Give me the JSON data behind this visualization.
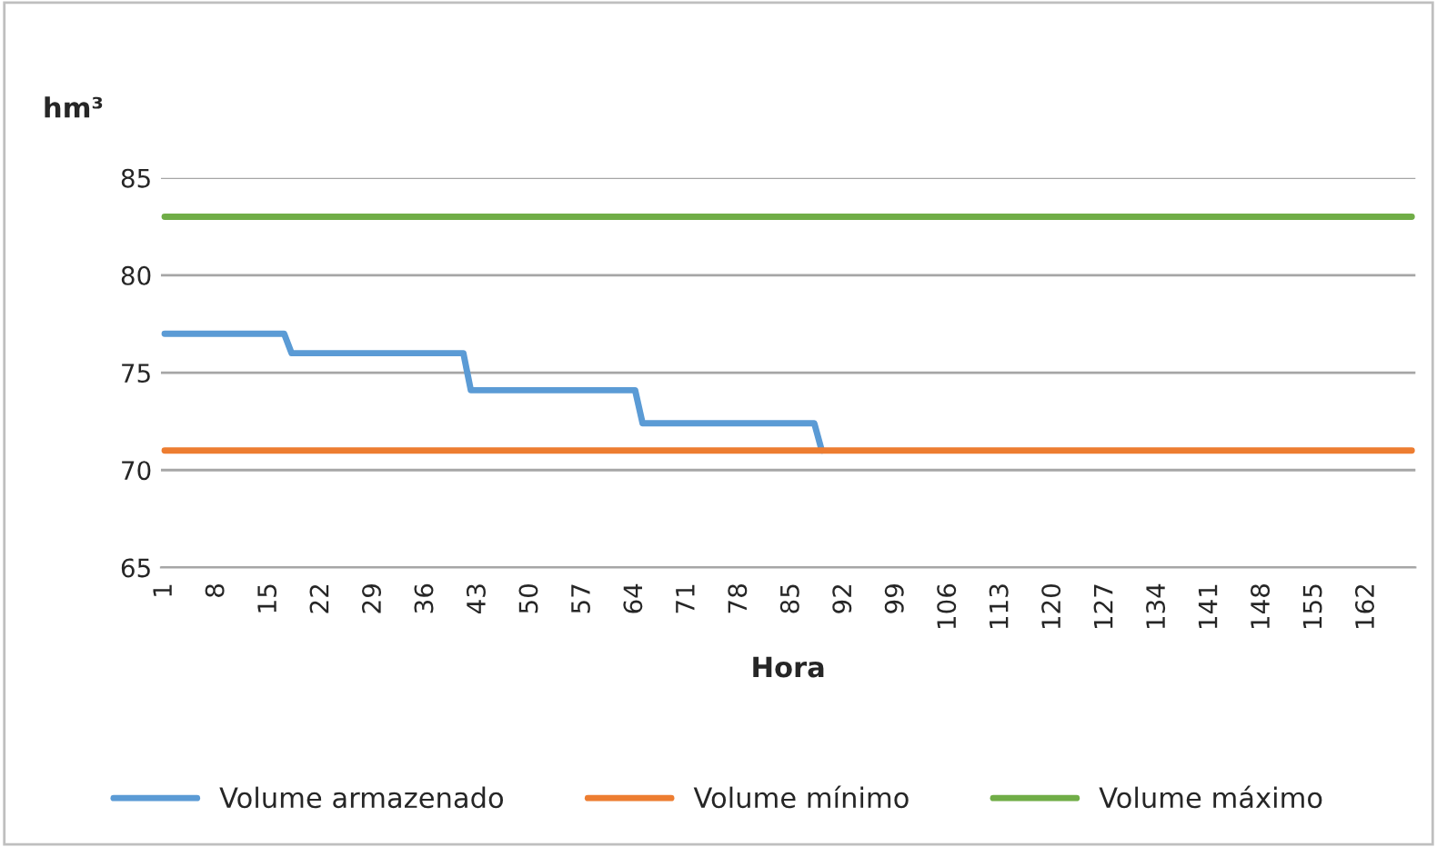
{
  "chart_data": {
    "type": "line",
    "ylabel": "hm³",
    "xlabel": "Hora",
    "categories": [
      "1",
      null,
      null,
      null,
      null,
      null,
      null,
      "8",
      null,
      null,
      null,
      null,
      null,
      null,
      "15",
      null,
      null,
      null,
      null,
      null,
      null,
      "22",
      null,
      null,
      null,
      null,
      null,
      null,
      "29",
      null,
      null,
      null,
      null,
      null,
      null,
      "36",
      null,
      null,
      null,
      null,
      null,
      null,
      "43",
      null,
      null,
      null,
      null,
      null,
      null,
      "50",
      null,
      null,
      null,
      null,
      null,
      null,
      "57",
      null,
      null,
      null,
      null,
      null,
      null,
      "64",
      null,
      null,
      null,
      null,
      null,
      null,
      "71",
      null,
      null,
      null,
      null,
      null,
      null,
      "78",
      null,
      null,
      null,
      null,
      null,
      null,
      "85",
      null,
      null,
      null,
      null,
      null,
      null,
      "92",
      null,
      null,
      null,
      null,
      null,
      null,
      "99",
      null,
      null,
      null,
      null,
      null,
      null,
      "106",
      null,
      null,
      null,
      null,
      null,
      null,
      "113",
      null,
      null,
      null,
      null,
      null,
      null,
      "120",
      null,
      null,
      null,
      null,
      null,
      null,
      "127",
      null,
      null,
      null,
      null,
      null,
      null,
      "134",
      null,
      null,
      null,
      null,
      null,
      null,
      "141",
      null,
      null,
      null,
      null,
      null,
      null,
      "148",
      null,
      null,
      null,
      null,
      null,
      null,
      "155",
      null,
      null,
      null,
      null,
      null,
      null,
      "162",
      null,
      null,
      null,
      null,
      null,
      null
    ],
    "series": [
      {
        "name": "Volume armazenado",
        "color": "#5b9bd5",
        "values": [
          77,
          77,
          77,
          77,
          77,
          77,
          77,
          77,
          77,
          77,
          77,
          77,
          77,
          77,
          77,
          77,
          77,
          76,
          76,
          76,
          76,
          76,
          76,
          76,
          76,
          76,
          76,
          76,
          76,
          76,
          76,
          76,
          76,
          76,
          76,
          76,
          76,
          76,
          76,
          76,
          76,
          74.1,
          74.1,
          74.1,
          74.1,
          74.1,
          74.1,
          74.1,
          74.1,
          74.1,
          74.1,
          74.1,
          74.1,
          74.1,
          74.1,
          74.1,
          74.1,
          74.1,
          74.1,
          74.1,
          74.1,
          74.1,
          74.1,
          74.1,
          72.4,
          72.4,
          72.4,
          72.4,
          72.4,
          72.4,
          72.4,
          72.4,
          72.4,
          72.4,
          72.4,
          72.4,
          72.4,
          72.4,
          72.4,
          72.4,
          72.4,
          72.4,
          72.4,
          72.4,
          72.4,
          72.4,
          72.4,
          72.4,
          71,
          null,
          null,
          null,
          null,
          null,
          null,
          null,
          null,
          null,
          null,
          null,
          null,
          null,
          null,
          null,
          null,
          null,
          null,
          null,
          null,
          null,
          null,
          null,
          null,
          null,
          null,
          null,
          null,
          null,
          null,
          null,
          null,
          null,
          null,
          null,
          null,
          null,
          null,
          null,
          null,
          null,
          null,
          null,
          null,
          null,
          null,
          null,
          null,
          null,
          null,
          null,
          null,
          null,
          null,
          null,
          null,
          null,
          null,
          null,
          null,
          null,
          null,
          null,
          null,
          null,
          null,
          null,
          null,
          null,
          null,
          null,
          null,
          null,
          null,
          null,
          null,
          null,
          null,
          null
        ]
      },
      {
        "name": "Volume mínimo",
        "color": "#ed7d31",
        "values": [
          71,
          71,
          71,
          71,
          71,
          71,
          71,
          71,
          71,
          71,
          71,
          71,
          71,
          71,
          71,
          71,
          71,
          71,
          71,
          71,
          71,
          71,
          71,
          71,
          71,
          71,
          71,
          71,
          71,
          71,
          71,
          71,
          71,
          71,
          71,
          71,
          71,
          71,
          71,
          71,
          71,
          71,
          71,
          71,
          71,
          71,
          71,
          71,
          71,
          71,
          71,
          71,
          71,
          71,
          71,
          71,
          71,
          71,
          71,
          71,
          71,
          71,
          71,
          71,
          71,
          71,
          71,
          71,
          71,
          71,
          71,
          71,
          71,
          71,
          71,
          71,
          71,
          71,
          71,
          71,
          71,
          71,
          71,
          71,
          71,
          71,
          71,
          71,
          71,
          71,
          71,
          71,
          71,
          71,
          71,
          71,
          71,
          71,
          71,
          71,
          71,
          71,
          71,
          71,
          71,
          71,
          71,
          71,
          71,
          71,
          71,
          71,
          71,
          71,
          71,
          71,
          71,
          71,
          71,
          71,
          71,
          71,
          71,
          71,
          71,
          71,
          71,
          71,
          71,
          71,
          71,
          71,
          71,
          71,
          71,
          71,
          71,
          71,
          71,
          71,
          71,
          71,
          71,
          71,
          71,
          71,
          71,
          71,
          71,
          71,
          71,
          71,
          71,
          71,
          71,
          71,
          71,
          71,
          71,
          71,
          71,
          71,
          71,
          71,
          71,
          71,
          71,
          71
        ]
      },
      {
        "name": "Volume máximo",
        "color": "#70ad47",
        "values": [
          83,
          83,
          83,
          83,
          83,
          83,
          83,
          83,
          83,
          83,
          83,
          83,
          83,
          83,
          83,
          83,
          83,
          83,
          83,
          83,
          83,
          83,
          83,
          83,
          83,
          83,
          83,
          83,
          83,
          83,
          83,
          83,
          83,
          83,
          83,
          83,
          83,
          83,
          83,
          83,
          83,
          83,
          83,
          83,
          83,
          83,
          83,
          83,
          83,
          83,
          83,
          83,
          83,
          83,
          83,
          83,
          83,
          83,
          83,
          83,
          83,
          83,
          83,
          83,
          83,
          83,
          83,
          83,
          83,
          83,
          83,
          83,
          83,
          83,
          83,
          83,
          83,
          83,
          83,
          83,
          83,
          83,
          83,
          83,
          83,
          83,
          83,
          83,
          83,
          83,
          83,
          83,
          83,
          83,
          83,
          83,
          83,
          83,
          83,
          83,
          83,
          83,
          83,
          83,
          83,
          83,
          83,
          83,
          83,
          83,
          83,
          83,
          83,
          83,
          83,
          83,
          83,
          83,
          83,
          83,
          83,
          83,
          83,
          83,
          83,
          83,
          83,
          83,
          83,
          83,
          83,
          83,
          83,
          83,
          83,
          83,
          83,
          83,
          83,
          83,
          83,
          83,
          83,
          83,
          83,
          83,
          83,
          83,
          83,
          83,
          83,
          83,
          83,
          83,
          83,
          83,
          83,
          83,
          83,
          83,
          83,
          83,
          83,
          83,
          83,
          83,
          83,
          83
        ]
      }
    ],
    "ylim": [
      65,
      85
    ],
    "yticks": [
      65,
      70,
      75,
      80,
      85
    ],
    "grid": "y",
    "legend": "bottom",
    "marker": "none",
    "line_style": "solid"
  }
}
